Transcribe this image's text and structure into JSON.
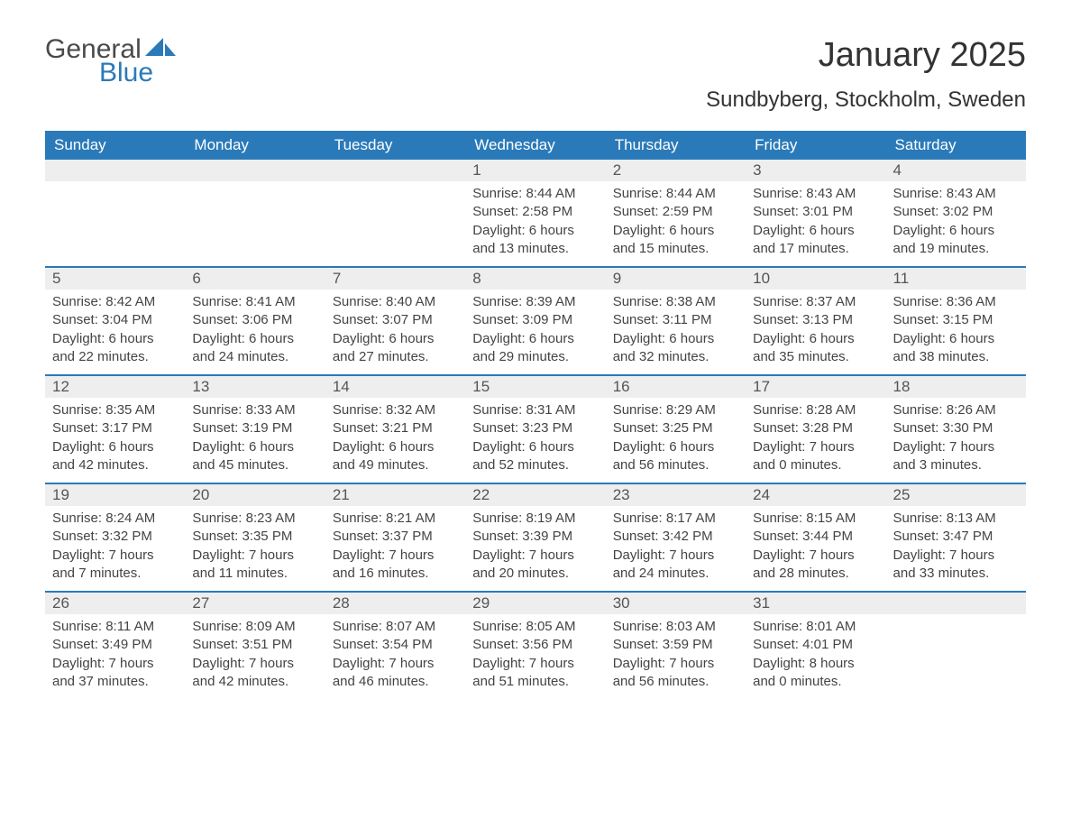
{
  "logo": {
    "text_general": "General",
    "text_blue": "Blue",
    "color_general": "#4a4a4a",
    "color_blue": "#2a7ab9"
  },
  "title": "January 2025",
  "location": "Sundbyberg, Stockholm, Sweden",
  "colors": {
    "header_bg": "#2a7ab9",
    "header_text": "#ffffff",
    "daynum_bg": "#eeeeee",
    "week_border": "#2a7ab9",
    "body_bg": "#ffffff",
    "text": "#333333"
  },
  "typography": {
    "title_fontsize": 38,
    "location_fontsize": 24,
    "header_fontsize": 17,
    "daynum_fontsize": 17,
    "body_fontsize": 15
  },
  "day_names": [
    "Sunday",
    "Monday",
    "Tuesday",
    "Wednesday",
    "Thursday",
    "Friday",
    "Saturday"
  ],
  "weeks": [
    [
      null,
      null,
      null,
      {
        "n": "1",
        "sunrise": "Sunrise: 8:44 AM",
        "sunset": "Sunset: 2:58 PM",
        "dl1": "Daylight: 6 hours",
        "dl2": "and 13 minutes."
      },
      {
        "n": "2",
        "sunrise": "Sunrise: 8:44 AM",
        "sunset": "Sunset: 2:59 PM",
        "dl1": "Daylight: 6 hours",
        "dl2": "and 15 minutes."
      },
      {
        "n": "3",
        "sunrise": "Sunrise: 8:43 AM",
        "sunset": "Sunset: 3:01 PM",
        "dl1": "Daylight: 6 hours",
        "dl2": "and 17 minutes."
      },
      {
        "n": "4",
        "sunrise": "Sunrise: 8:43 AM",
        "sunset": "Sunset: 3:02 PM",
        "dl1": "Daylight: 6 hours",
        "dl2": "and 19 minutes."
      }
    ],
    [
      {
        "n": "5",
        "sunrise": "Sunrise: 8:42 AM",
        "sunset": "Sunset: 3:04 PM",
        "dl1": "Daylight: 6 hours",
        "dl2": "and 22 minutes."
      },
      {
        "n": "6",
        "sunrise": "Sunrise: 8:41 AM",
        "sunset": "Sunset: 3:06 PM",
        "dl1": "Daylight: 6 hours",
        "dl2": "and 24 minutes."
      },
      {
        "n": "7",
        "sunrise": "Sunrise: 8:40 AM",
        "sunset": "Sunset: 3:07 PM",
        "dl1": "Daylight: 6 hours",
        "dl2": "and 27 minutes."
      },
      {
        "n": "8",
        "sunrise": "Sunrise: 8:39 AM",
        "sunset": "Sunset: 3:09 PM",
        "dl1": "Daylight: 6 hours",
        "dl2": "and 29 minutes."
      },
      {
        "n": "9",
        "sunrise": "Sunrise: 8:38 AM",
        "sunset": "Sunset: 3:11 PM",
        "dl1": "Daylight: 6 hours",
        "dl2": "and 32 minutes."
      },
      {
        "n": "10",
        "sunrise": "Sunrise: 8:37 AM",
        "sunset": "Sunset: 3:13 PM",
        "dl1": "Daylight: 6 hours",
        "dl2": "and 35 minutes."
      },
      {
        "n": "11",
        "sunrise": "Sunrise: 8:36 AM",
        "sunset": "Sunset: 3:15 PM",
        "dl1": "Daylight: 6 hours",
        "dl2": "and 38 minutes."
      }
    ],
    [
      {
        "n": "12",
        "sunrise": "Sunrise: 8:35 AM",
        "sunset": "Sunset: 3:17 PM",
        "dl1": "Daylight: 6 hours",
        "dl2": "and 42 minutes."
      },
      {
        "n": "13",
        "sunrise": "Sunrise: 8:33 AM",
        "sunset": "Sunset: 3:19 PM",
        "dl1": "Daylight: 6 hours",
        "dl2": "and 45 minutes."
      },
      {
        "n": "14",
        "sunrise": "Sunrise: 8:32 AM",
        "sunset": "Sunset: 3:21 PM",
        "dl1": "Daylight: 6 hours",
        "dl2": "and 49 minutes."
      },
      {
        "n": "15",
        "sunrise": "Sunrise: 8:31 AM",
        "sunset": "Sunset: 3:23 PM",
        "dl1": "Daylight: 6 hours",
        "dl2": "and 52 minutes."
      },
      {
        "n": "16",
        "sunrise": "Sunrise: 8:29 AM",
        "sunset": "Sunset: 3:25 PM",
        "dl1": "Daylight: 6 hours",
        "dl2": "and 56 minutes."
      },
      {
        "n": "17",
        "sunrise": "Sunrise: 8:28 AM",
        "sunset": "Sunset: 3:28 PM",
        "dl1": "Daylight: 7 hours",
        "dl2": "and 0 minutes."
      },
      {
        "n": "18",
        "sunrise": "Sunrise: 8:26 AM",
        "sunset": "Sunset: 3:30 PM",
        "dl1": "Daylight: 7 hours",
        "dl2": "and 3 minutes."
      }
    ],
    [
      {
        "n": "19",
        "sunrise": "Sunrise: 8:24 AM",
        "sunset": "Sunset: 3:32 PM",
        "dl1": "Daylight: 7 hours",
        "dl2": "and 7 minutes."
      },
      {
        "n": "20",
        "sunrise": "Sunrise: 8:23 AM",
        "sunset": "Sunset: 3:35 PM",
        "dl1": "Daylight: 7 hours",
        "dl2": "and 11 minutes."
      },
      {
        "n": "21",
        "sunrise": "Sunrise: 8:21 AM",
        "sunset": "Sunset: 3:37 PM",
        "dl1": "Daylight: 7 hours",
        "dl2": "and 16 minutes."
      },
      {
        "n": "22",
        "sunrise": "Sunrise: 8:19 AM",
        "sunset": "Sunset: 3:39 PM",
        "dl1": "Daylight: 7 hours",
        "dl2": "and 20 minutes."
      },
      {
        "n": "23",
        "sunrise": "Sunrise: 8:17 AM",
        "sunset": "Sunset: 3:42 PM",
        "dl1": "Daylight: 7 hours",
        "dl2": "and 24 minutes."
      },
      {
        "n": "24",
        "sunrise": "Sunrise: 8:15 AM",
        "sunset": "Sunset: 3:44 PM",
        "dl1": "Daylight: 7 hours",
        "dl2": "and 28 minutes."
      },
      {
        "n": "25",
        "sunrise": "Sunrise: 8:13 AM",
        "sunset": "Sunset: 3:47 PM",
        "dl1": "Daylight: 7 hours",
        "dl2": "and 33 minutes."
      }
    ],
    [
      {
        "n": "26",
        "sunrise": "Sunrise: 8:11 AM",
        "sunset": "Sunset: 3:49 PM",
        "dl1": "Daylight: 7 hours",
        "dl2": "and 37 minutes."
      },
      {
        "n": "27",
        "sunrise": "Sunrise: 8:09 AM",
        "sunset": "Sunset: 3:51 PM",
        "dl1": "Daylight: 7 hours",
        "dl2": "and 42 minutes."
      },
      {
        "n": "28",
        "sunrise": "Sunrise: 8:07 AM",
        "sunset": "Sunset: 3:54 PM",
        "dl1": "Daylight: 7 hours",
        "dl2": "and 46 minutes."
      },
      {
        "n": "29",
        "sunrise": "Sunrise: 8:05 AM",
        "sunset": "Sunset: 3:56 PM",
        "dl1": "Daylight: 7 hours",
        "dl2": "and 51 minutes."
      },
      {
        "n": "30",
        "sunrise": "Sunrise: 8:03 AM",
        "sunset": "Sunset: 3:59 PM",
        "dl1": "Daylight: 7 hours",
        "dl2": "and 56 minutes."
      },
      {
        "n": "31",
        "sunrise": "Sunrise: 8:01 AM",
        "sunset": "Sunset: 4:01 PM",
        "dl1": "Daylight: 8 hours",
        "dl2": "and 0 minutes."
      },
      null
    ]
  ]
}
